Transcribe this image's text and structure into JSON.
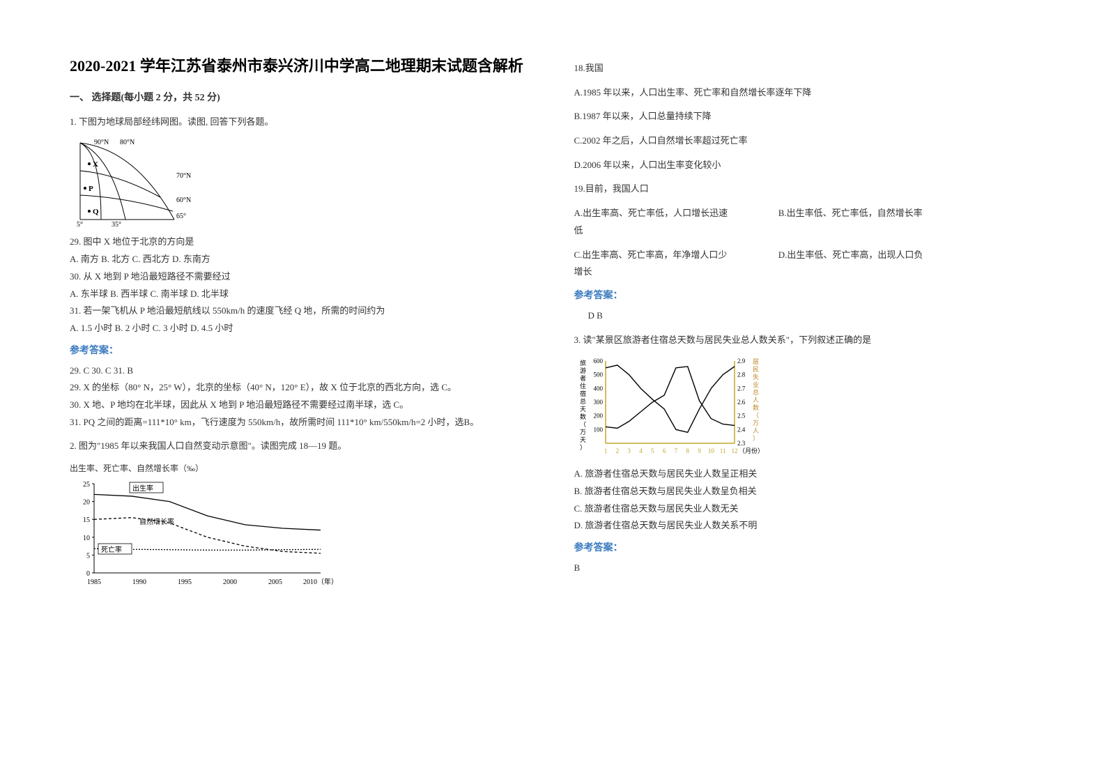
{
  "title": "2020-2021 学年江苏省泰州市泰兴济川中学高二地理期末试题含解析",
  "section_heading": "一、 选择题(每小题 2 分，共 52 分)",
  "q1": {
    "stem": "1. 下图为地球局部经纬网图。读图, 回答下列各题。",
    "map": {
      "lat_labels": [
        "90°N",
        "80°N",
        "70°N",
        "60°N",
        "65°"
      ],
      "lon_labels": [
        "5°",
        "35°"
      ],
      "points": [
        "X",
        "P",
        "Q"
      ],
      "stroke": "#000000",
      "bg": "#ffffff"
    },
    "sub29_q": "29.  图中 X 地位于北京的方向是",
    "sub29_opts": "A.  南方          B.  北方          C.  西北方          D.  东南方",
    "sub30_q": "30.  从 X 地到 P 地沿最短路径不需要经过",
    "sub30_opts": "A.  东半球          B.  西半球          C.  南半球          D.  北半球",
    "sub31_q": "31.  若一架飞机从 P 地沿最短航线以 550km/h 的速度飞经 Q 地，所需的时间约为",
    "sub31_opts": "A.  1.5 小时          B.  2 小时          C.  3 小时          D.  4.5 小时",
    "answer_heading": "参考答案：",
    "answers_line": "29. C          30. C          31. B",
    "expl29": "29.  X 的坐标（80° N，25° W），北京的坐标（40° N，120° E），故 X 位于北京的西北方向，选 C。",
    "expl30": "30.  X 地、P 地均在北半球，因此从 X 地到 P 地沿最短路径不需要经过南半球，选 C。",
    "expl31": "31.  PQ 之间的距离=111*10° km，飞行速度为 550km/h，故所需时间 111*10° km/550km/h=2 小时，选B。"
  },
  "q2": {
    "stem": "2. 图为\"1985 年以来我国人口自然变动示意图\"。读图完成 18—19 题。",
    "chart": {
      "y_title": "出生率、死亡率、自然增长率（‰）",
      "x_years": [
        "1985",
        "1990",
        "1995",
        "2000",
        "2005",
        "2010（年）"
      ],
      "y_max": 25,
      "y_ticks": [
        0,
        5,
        10,
        15,
        20,
        25
      ],
      "series": {
        "birth": {
          "label": "出生率",
          "color": "#000000",
          "vals": [
            22,
            21.5,
            20,
            16,
            13.5,
            12.5,
            12
          ]
        },
        "natural": {
          "label": "自然增长率",
          "color": "#000000",
          "dash": "4,3",
          "vals": [
            15,
            15.5,
            14,
            10,
            7.5,
            6,
            5.5
          ]
        },
        "death": {
          "label": "死亡率",
          "color": "#000000",
          "dash": "2,2",
          "vals": [
            6.8,
            6.6,
            6.5,
            6.4,
            6.4,
            6.5,
            6.6
          ]
        }
      },
      "bg": "#ffffff",
      "axis_color": "#000000"
    },
    "sub18_q": "18.我国",
    "sub18_a": "A.1985 年以来，人口出生率、死亡率和自然增长率逐年下降",
    "sub18_b": "B.1987 年以来，人口总量持续下降",
    "sub18_c": "C.2002 年之后，人口自然增长率超过死亡率",
    "sub18_d": "D.2006 年以来，人口出生率变化较小",
    "sub19_q": "19.目前，我国人口",
    "sub19_a": "A.出生率高、死亡率低，人口增长迅速",
    "sub19_b": "B.出生率低、死亡率低，自然增长率",
    "sub19_b_cont": "低",
    "sub19_c": "C.出生率高、死亡率高，年净增人口少",
    "sub19_d": "D.出生率低、死亡率高，出现人口负",
    "sub19_d_cont": "增长",
    "answer_heading": "参考答案：",
    "answers": "D  B"
  },
  "q3": {
    "stem": "3. 读\"某景区旅游者住宿总天数与居民失业总人数关系\"，下列叙述正确的是",
    "chart": {
      "left_y_label": "旅游者住宿总天数（万天）",
      "right_y_label": "居民失业总人数（万人）",
      "x_label": "（月份）",
      "x_ticks": [
        "1",
        "2",
        "3",
        "4",
        "5",
        "6",
        "7",
        "8",
        "9",
        "10",
        "11",
        "12"
      ],
      "left_y_range": [
        0,
        600
      ],
      "left_y_ticks": [
        100,
        200,
        300,
        400,
        500,
        600
      ],
      "right_y_range": [
        2.3,
        2.9
      ],
      "right_y_ticks": [
        "2.3",
        "2.4",
        "2.5",
        "2.6",
        "2.7",
        "2.8",
        "2.9"
      ],
      "series_lodging": [
        120,
        110,
        160,
        230,
        300,
        350,
        550,
        560,
        310,
        180,
        140,
        130
      ],
      "series_unemp": [
        2.85,
        2.87,
        2.8,
        2.7,
        2.62,
        2.55,
        2.4,
        2.38,
        2.55,
        2.7,
        2.8,
        2.86
      ],
      "line_color": "#000000",
      "axis_color": "#bfa82a",
      "bg": "#ffffff"
    },
    "opt_a": "A.  旅游者住宿总天数与居民失业人数呈正相关",
    "opt_b": "B.  旅游者住宿总天数与居民失业人数呈负相关",
    "opt_c": "C.  旅游者住宿总天数与居民失业人数无关",
    "opt_d": "D.  旅游者住宿总天数与居民失业人数关系不明",
    "answer_heading": "参考答案：",
    "answer": "B"
  }
}
